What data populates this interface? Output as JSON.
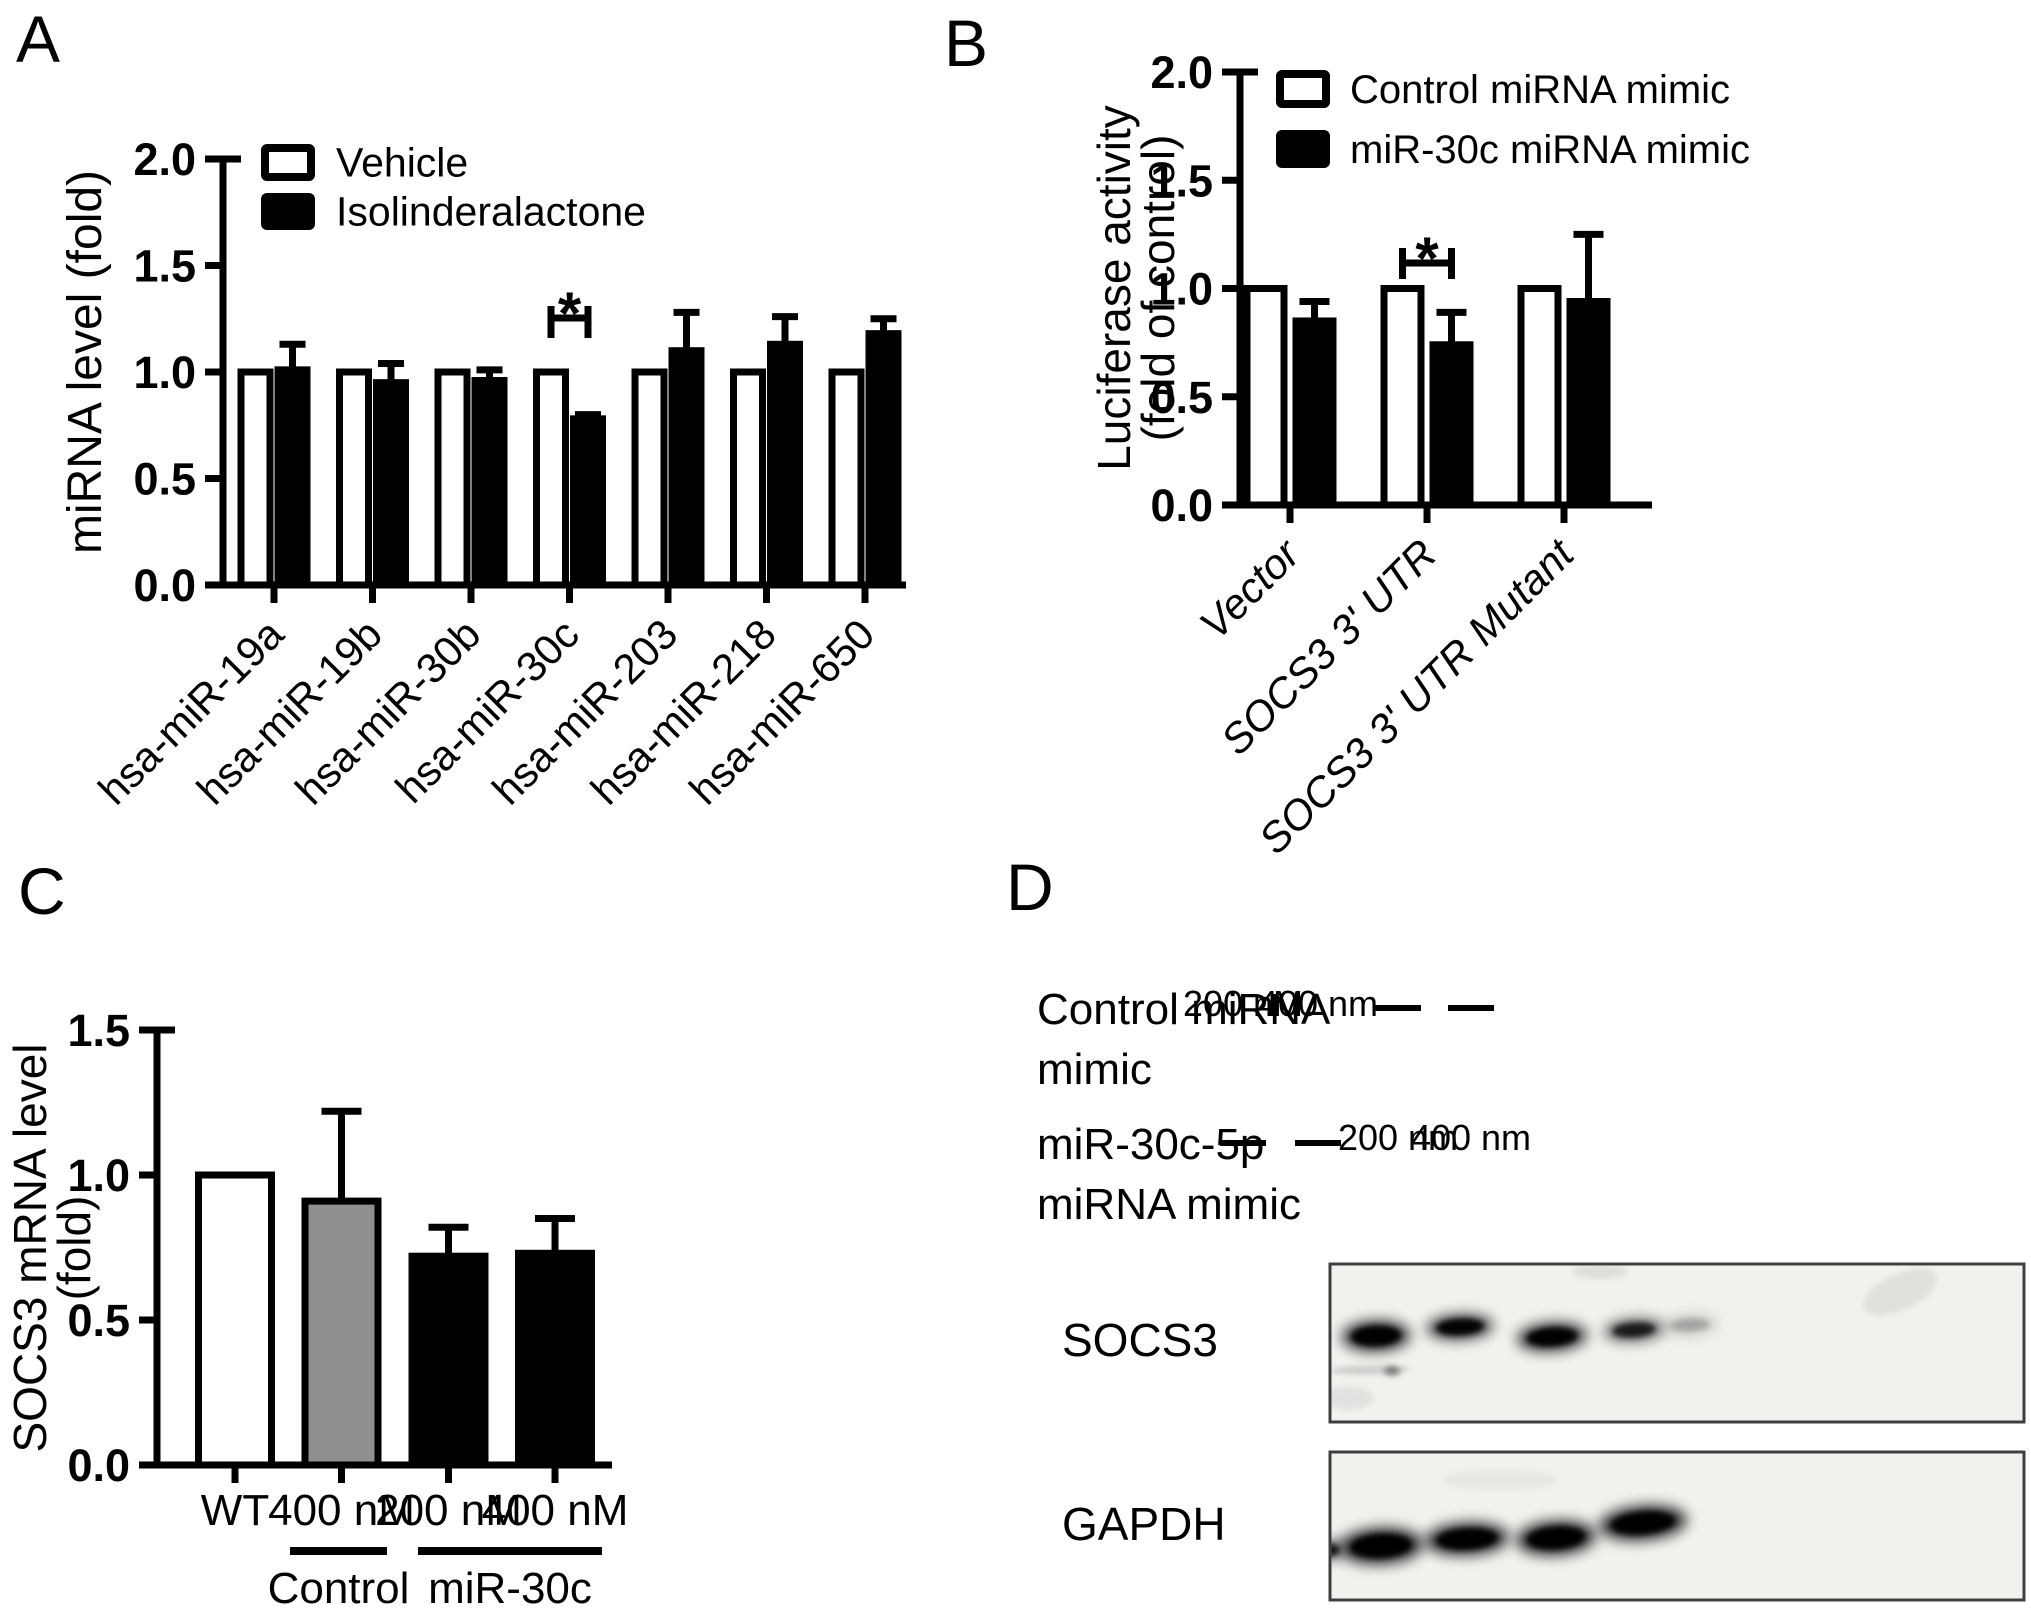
{
  "figure": {
    "panel_labels": [
      "A",
      "B",
      "C",
      "D"
    ],
    "background": "#ffffff",
    "ink_color": "#000000",
    "gray_bar_color": "#8f8f8f"
  },
  "chart_data": [
    {
      "panel": "A",
      "type": "bar",
      "grouped": true,
      "title": "",
      "xlabel": "",
      "ylabel": "miRNA level (fold)",
      "ylabel_lines": [
        "miRNA level (fold)"
      ],
      "ylim": [
        0,
        2.0
      ],
      "yticks": [
        "0.0",
        "0.5",
        "1.0",
        "1.5",
        "2.0"
      ],
      "grid": false,
      "legend_position": "top-left",
      "categories": [
        "hsa-miR-19a",
        "hsa-miR-19b",
        "hsa-miR-30b",
        "hsa-miR-30c",
        "hsa-miR-203",
        "hsa-miR-218",
        "hsa-miR-650"
      ],
      "series": [
        {
          "name": "Vehicle",
          "fill": "#ffffff",
          "values": [
            1.0,
            1.0,
            1.0,
            1.0,
            1.0,
            1.0,
            1.0
          ],
          "errors": [
            0,
            0,
            0,
            0,
            0,
            0,
            0
          ]
        },
        {
          "name": "Isolinderalactone",
          "fill": "#000000",
          "values": [
            1.01,
            0.95,
            0.96,
            0.78,
            1.1,
            1.13,
            1.18
          ],
          "errors": [
            0.12,
            0.09,
            0.05,
            0.02,
            0.18,
            0.13,
            0.07
          ]
        }
      ],
      "significance": [
        {
          "category_index": 3,
          "between": [
            "Vehicle",
            "Isolinderalactone"
          ],
          "label": "*"
        }
      ]
    },
    {
      "panel": "B",
      "type": "bar",
      "grouped": true,
      "title": "",
      "xlabel": "",
      "ylabel": "Luciferase activity (fold of control)",
      "ylabel_lines": [
        "Luciferase activity",
        "(fold of control)"
      ],
      "ylim": [
        0,
        2.0
      ],
      "yticks": [
        "0.0",
        "0.5",
        "1.0",
        "1.5",
        "2.0"
      ],
      "grid": false,
      "legend_position": "top-left",
      "categories": [
        "Vector",
        "SOCS3 3' UTR",
        "SOCS3 3' UTR Mutant"
      ],
      "series": [
        {
          "name": "Control miRNA mimic",
          "fill": "#ffffff",
          "values": [
            1.0,
            1.0,
            1.0
          ],
          "errors": [
            0,
            0,
            0
          ]
        },
        {
          "name": "miR-30c miRNA mimic",
          "fill": "#000000",
          "values": [
            0.85,
            0.74,
            0.94
          ],
          "errors": [
            0.09,
            0.15,
            0.31
          ]
        }
      ],
      "significance": [
        {
          "category_index": 1,
          "between": [
            "Control miRNA mimic",
            "miR-30c miRNA mimic"
          ],
          "label": "*"
        }
      ]
    },
    {
      "panel": "C",
      "type": "bar",
      "grouped": false,
      "title": "",
      "xlabel": "",
      "ylabel": "SOCS3 mRNA level (fold)",
      "ylabel_lines": [
        "SOCS3 mRNA level",
        "(fold)"
      ],
      "ylim": [
        0,
        1.5
      ],
      "yticks": [
        "0.0",
        "0.5",
        "1.0",
        "1.5"
      ],
      "grid": false,
      "categories": [
        "WT",
        "400 nM",
        "200 nM",
        "400 nM"
      ],
      "values": [
        1.0,
        0.91,
        0.72,
        0.73
      ],
      "errors": [
        0,
        0.31,
        0.1,
        0.12
      ],
      "bar_fills": [
        "#ffffff",
        "#8f8f8f",
        "#000000",
        "#000000"
      ],
      "group_labels": [
        {
          "label": "Control",
          "covers": [
            "400 nM"
          ]
        },
        {
          "label": "miR-30c",
          "covers": [
            "200 nM",
            "400 nM"
          ]
        }
      ]
    },
    {
      "panel": "D",
      "type": "table",
      "description": "Western blot with dose table",
      "rows": [
        {
          "label": "Control miRNA mimic",
          "label_lines": [
            "Control miRNA",
            "mimic"
          ],
          "values": [
            "200 nM",
            "400 nm",
            "—",
            "—"
          ]
        },
        {
          "label": "miR-30c-5p miRNA mimic",
          "label_lines": [
            "miR-30c-5p",
            "miRNA mimic"
          ],
          "values": [
            "—",
            "—",
            "200 nm",
            "400 nm"
          ]
        }
      ],
      "blots": [
        {
          "label": "SOCS3",
          "lanes": 4,
          "band_intensities": [
            "strong",
            "medium",
            "strong",
            "weak"
          ]
        },
        {
          "label": "GAPDH",
          "lanes": 4,
          "band_intensities": [
            "strong",
            "strong",
            "strong",
            "strong"
          ]
        }
      ]
    }
  ]
}
